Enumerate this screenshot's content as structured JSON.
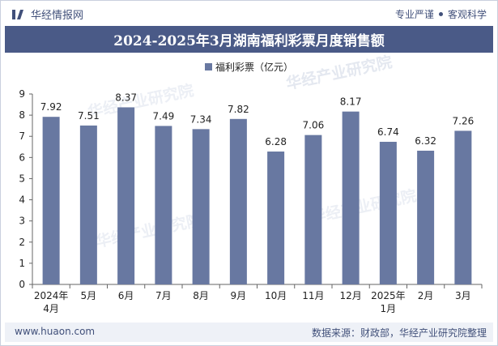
{
  "header": {
    "brand": "华经情报网",
    "slogan_left": "专业严谨",
    "slogan_right": "客观科学"
  },
  "chart_data": {
    "type": "bar",
    "title": "2024-2025年3月湖南福利彩票月度销售额",
    "categories": [
      [
        "2024年",
        "4月"
      ],
      [
        "5月"
      ],
      [
        "6月"
      ],
      [
        "7月"
      ],
      [
        "8月"
      ],
      [
        "9月"
      ],
      [
        "10月"
      ],
      [
        "11月"
      ],
      [
        "12月"
      ],
      [
        "2025年",
        "1月"
      ],
      [
        "2月"
      ],
      [
        "3月"
      ]
    ],
    "series": [
      {
        "name": "福利彩票（亿元）",
        "values": [
          7.92,
          7.51,
          8.37,
          7.49,
          7.34,
          7.82,
          6.28,
          7.06,
          8.17,
          6.74,
          6.32,
          7.26
        ],
        "color": "#6878a1"
      }
    ],
    "ylim": [
      0,
      9
    ],
    "yticks": [
      0,
      1,
      2,
      3,
      4,
      5,
      6,
      7,
      8,
      9
    ],
    "grid": false,
    "legend_position": "top-center"
  },
  "footer": {
    "website": "www.huaon.com",
    "source": "数据来源：财政部，华经产业研究院整理"
  },
  "watermarks": [
    "华经产业研究院",
    "www.huaon.com"
  ]
}
